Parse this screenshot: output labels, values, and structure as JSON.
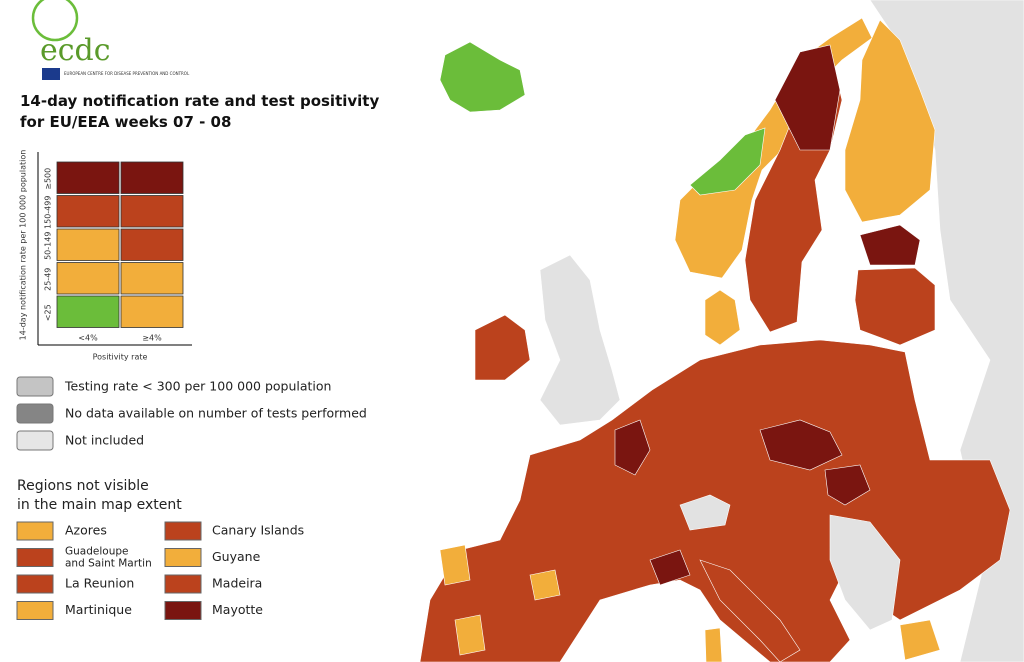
{
  "logo": {
    "text": "ecdc",
    "subtext": "EUROPEAN CENTRE FOR DISEASE PREVENTION AND CONTROL"
  },
  "title": [
    "14-day notification rate and test positivity",
    "for EU/EEA weeks 07 - 08"
  ],
  "matrix": {
    "y_label": "14-day notification rate per 100 000 population",
    "x_label": "Positivity rate",
    "columns": [
      "<4%",
      "≥4%"
    ],
    "rows": [
      {
        "label": "≥500",
        "colors": [
          "#7a1510",
          "#7a1510"
        ]
      },
      {
        "label": "150-499",
        "colors": [
          "#bb421d",
          "#bb421d"
        ]
      },
      {
        "label": "50-149",
        "colors": [
          "#f2ae3b",
          "#bb421d"
        ]
      },
      {
        "label": "25-49",
        "colors": [
          "#f2ae3b",
          "#f2ae3b"
        ]
      },
      {
        "label": "<25",
        "colors": [
          "#6bbd3a",
          "#f2ae3b"
        ]
      }
    ]
  },
  "legend": [
    {
      "label": "Testing rate < 300 per 100 000 population",
      "color": "#c4c4c4"
    },
    {
      "label": "No data available on number of tests performed",
      "color": "#858585"
    },
    {
      "label": "Not included",
      "color": "#e6e6e6"
    }
  ],
  "regions": {
    "title": [
      "Regions not visible",
      "in the main map extent"
    ],
    "items": [
      {
        "label": [
          "Azores"
        ],
        "color": "#f2ae3b"
      },
      {
        "label": [
          "Guadeloupe",
          "and Saint Martin"
        ],
        "color": "#bb421d"
      },
      {
        "label": [
          "La Reunion"
        ],
        "color": "#bb421d"
      },
      {
        "label": [
          "Martinique"
        ],
        "color": "#f2ae3b"
      },
      {
        "label": [
          "Canary Islands"
        ],
        "color": "#bb421d"
      },
      {
        "label": [
          "Guyane"
        ],
        "color": "#f2ae3b"
      },
      {
        "label": [
          "Madeira"
        ],
        "color": "#bb421d"
      },
      {
        "label": [
          "Mayotte"
        ],
        "color": "#7a1510"
      }
    ]
  }
}
